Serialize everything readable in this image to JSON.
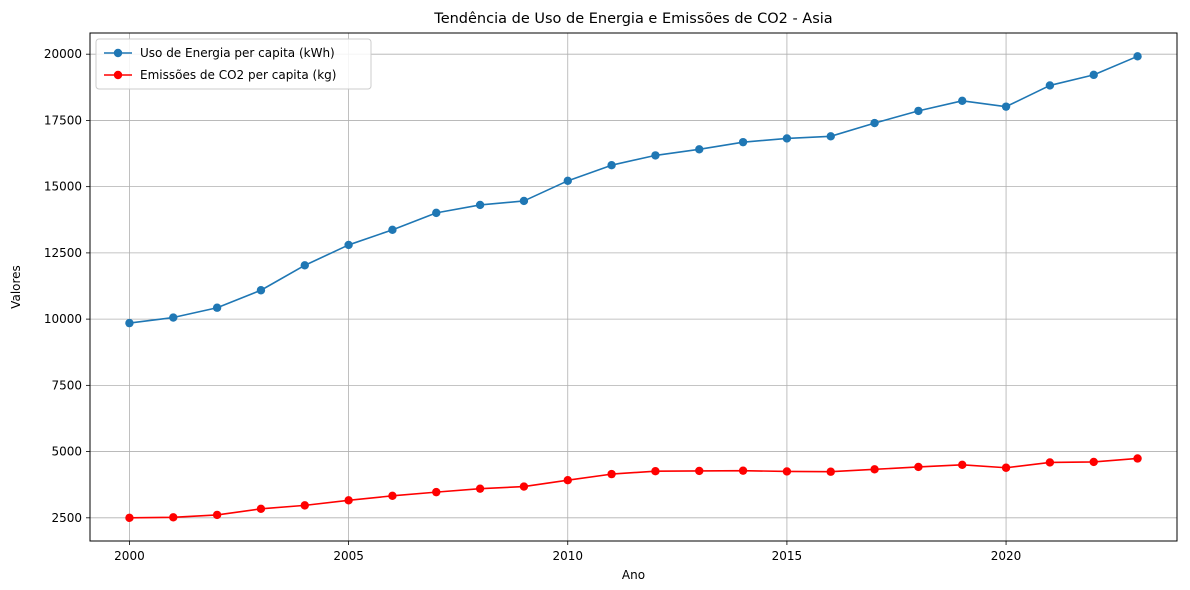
{
  "chart_data": {
    "type": "line",
    "title": "Tendência de Uso de Energia e Emissões de CO2 - Asia",
    "xlabel": "Ano",
    "ylabel": "Valores",
    "xlim": [
      1999.1,
      2023.9
    ],
    "ylim": [
      1625,
      20800
    ],
    "xticks": [
      2000,
      2005,
      2010,
      2015,
      2020
    ],
    "yticks": [
      2500,
      5000,
      7500,
      10000,
      12500,
      15000,
      17500,
      20000
    ],
    "grid": true,
    "legend_position": "top-left",
    "x": [
      2000,
      2001,
      2002,
      2003,
      2004,
      2005,
      2006,
      2007,
      2008,
      2009,
      2010,
      2011,
      2012,
      2013,
      2014,
      2015,
      2016,
      2017,
      2018,
      2019,
      2020,
      2021,
      2022,
      2023
    ],
    "series": [
      {
        "name": "Uso de Energia per capita (kWh)",
        "color": "#1f77b4",
        "marker": "circle",
        "values": [
          9850,
          10060,
          10430,
          11090,
          12030,
          12800,
          13370,
          14010,
          14310,
          14460,
          15220,
          15810,
          16180,
          16410,
          16680,
          16820,
          16900,
          17400,
          17860,
          18240,
          18020,
          18820,
          19220,
          19920
        ]
      },
      {
        "name": "Emissões de CO2 per capita (kg)",
        "color": "#ff0000",
        "marker": "circle",
        "values": [
          2500,
          2520,
          2610,
          2840,
          2970,
          3160,
          3330,
          3470,
          3600,
          3680,
          3920,
          4150,
          4260,
          4270,
          4280,
          4250,
          4240,
          4330,
          4420,
          4500,
          4390,
          4590,
          4610,
          4740
        ]
      }
    ]
  }
}
